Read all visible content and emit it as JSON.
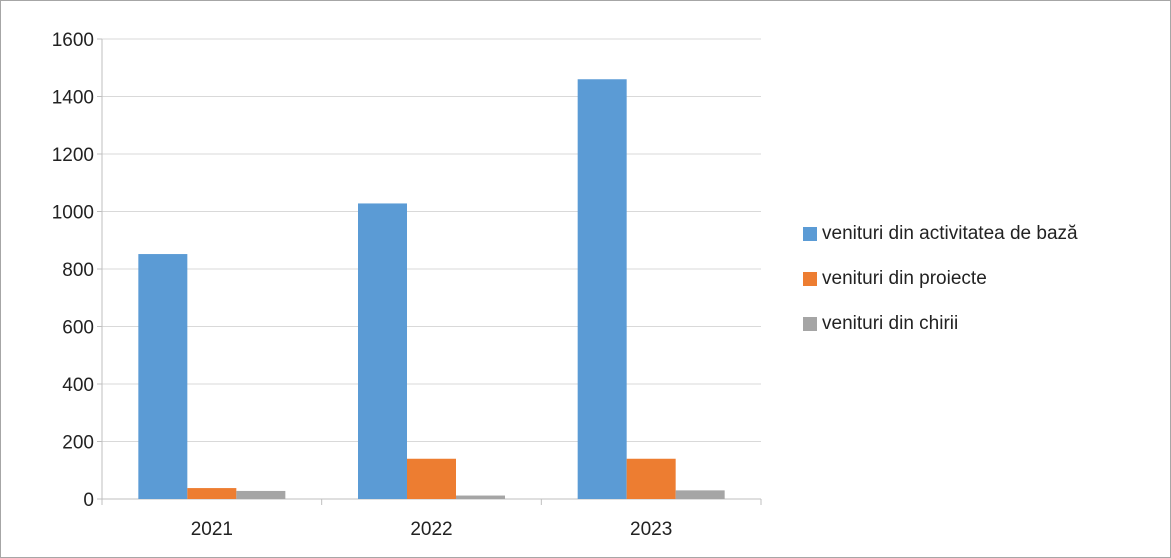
{
  "chart_data": {
    "type": "bar",
    "categories": [
      "2021",
      "2022",
      "2023"
    ],
    "series": [
      {
        "name": "venituri din activitatea de bază",
        "color": "#5b9bd5",
        "values": [
          852,
          1028,
          1460
        ]
      },
      {
        "name": "venituri din proiecte",
        "color": "#ed7d31",
        "values": [
          38,
          140,
          140
        ]
      },
      {
        "name": "venituri din chirii",
        "color": "#a5a5a5",
        "values": [
          28,
          12,
          30
        ]
      }
    ],
    "ylim": [
      0,
      1600
    ],
    "yticks": [
      0,
      200,
      400,
      600,
      800,
      1000,
      1200,
      1400,
      1600
    ],
    "grid": true,
    "legend": "right"
  }
}
